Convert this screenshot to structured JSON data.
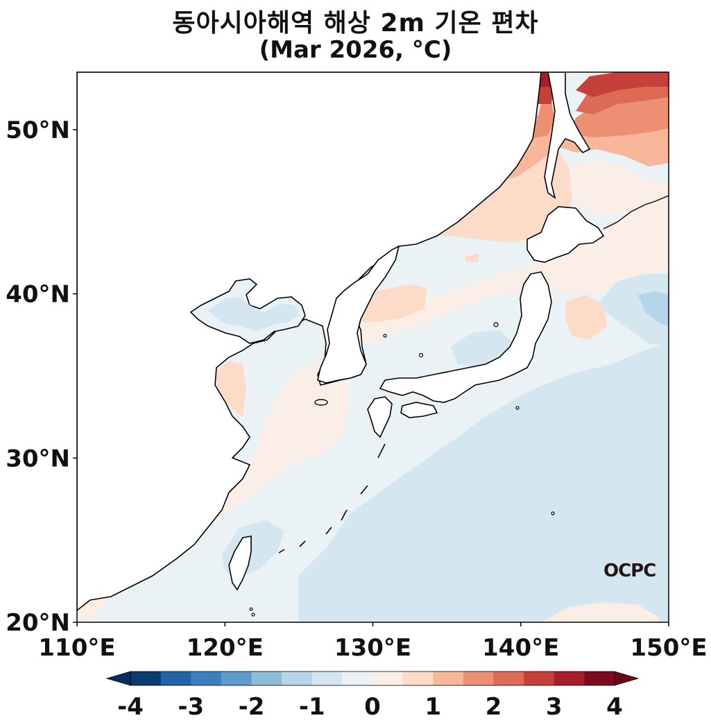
{
  "title": {
    "line1": "동아시아해역 해상 2m 기온 편차",
    "line2": "(Mar 2026, °C)"
  },
  "logo_text": "OCPC",
  "axes": {
    "x_ticks": [
      "110°E",
      "120°E",
      "130°E",
      "140°E",
      "150°E"
    ],
    "y_ticks": [
      "50°N",
      "40°N",
      "30°N",
      "20°N"
    ]
  },
  "colorbar": {
    "tick_labels": [
      "-4",
      "-3",
      "-2",
      "-1",
      "0",
      "1",
      "2",
      "3",
      "4"
    ],
    "levels": [
      -4,
      -3.5,
      -3,
      -2.5,
      -2,
      -1.5,
      -1,
      -0.5,
      0,
      0.5,
      1,
      1.5,
      2,
      2.5,
      3,
      3.5,
      4
    ],
    "colors": [
      "#0b3a6e",
      "#1f63a8",
      "#3a7fbe",
      "#5c9ccb",
      "#8cbedc",
      "#b6d5e8",
      "#d4e6f0",
      "#eaf2f5",
      "#fbeee6",
      "#fcdcc9",
      "#f8b79b",
      "#ec8f73",
      "#dc6a55",
      "#c6403a",
      "#a81d2a",
      "#7d0a20"
    ],
    "under_color": "#08305e",
    "over_color": "#690818"
  },
  "map": {
    "lon_range": [
      110,
      150
    ],
    "lat_range": [
      20,
      53.5
    ],
    "variable": "sea surface 2m air temperature anomaly",
    "colors": {
      "land": "#ffffff",
      "neutral_sea": "#eaf2f5",
      "cool_sea": "#d4e6f0",
      "cooler_sea": "#b6d5e8",
      "warm_sea": "#fbeee6",
      "warmer_sea": "#fcdcc9",
      "warm_orange": "#f8b79b",
      "hot": "#ec8f73",
      "hotter": "#dc6a55",
      "hottest": "#c6403a",
      "extreme": "#a81d2a",
      "coastline": "#000000"
    }
  }
}
